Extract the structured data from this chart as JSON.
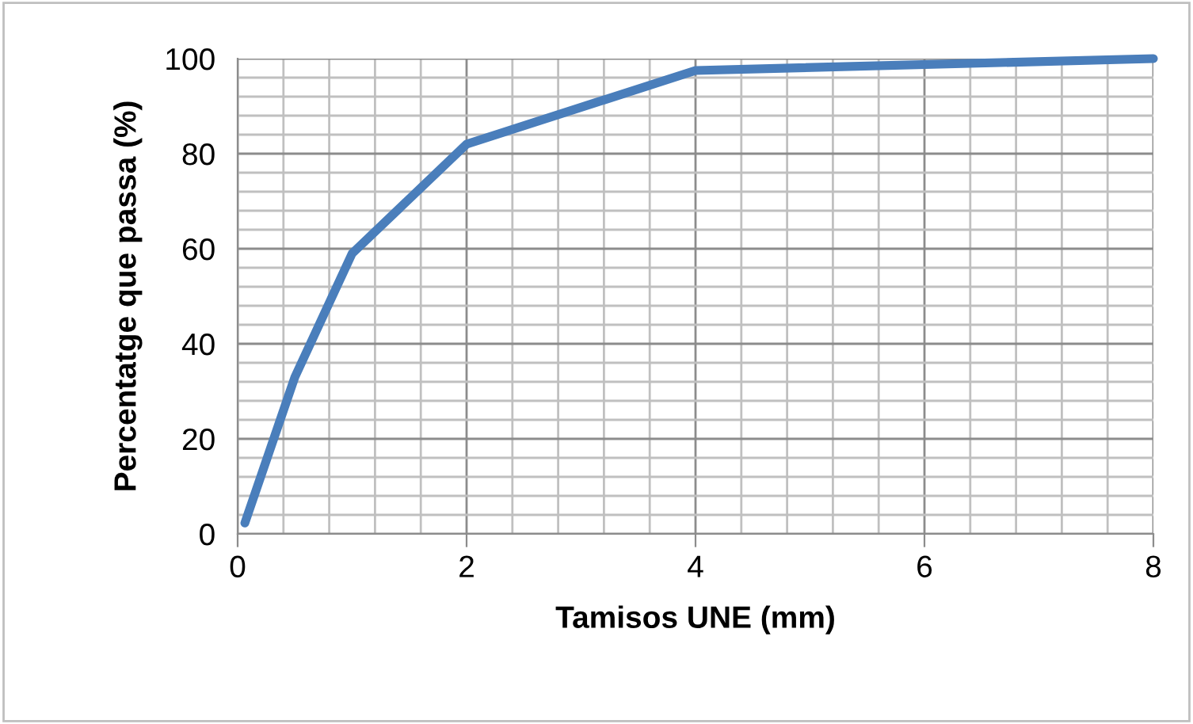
{
  "chart_data": {
    "type": "line",
    "xlabel": "Tamisos UNE (mm)",
    "ylabel": "Percentatge que passa (%)",
    "x": [
      0.063,
      0.5,
      1,
      2,
      4,
      8
    ],
    "series": [
      {
        "color": "#4a7ebb",
        "values": [
          2.3,
          33,
          59,
          82,
          97.5,
          100
        ]
      }
    ],
    "xlim": [
      0,
      8
    ],
    "xticks": [
      0,
      2,
      4,
      6,
      8
    ],
    "ylim": [
      0,
      100
    ],
    "yticks": [
      0,
      20,
      40,
      60,
      80,
      100
    ],
    "grid": true,
    "legend": false,
    "marker": "none",
    "line_style": "solid"
  }
}
